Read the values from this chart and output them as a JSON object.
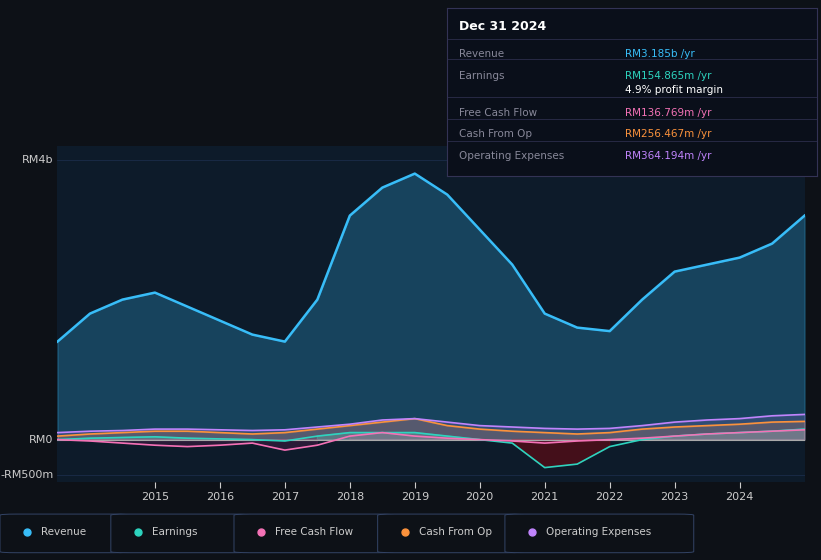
{
  "bg_color": "#0d1117",
  "plot_bg_color": "#0d1b2a",
  "grid_color": "#1e3050",
  "title_box_date": "Dec 31 2024",
  "ylabel_top": "RM4b",
  "ylabel_mid": "RM0",
  "ylabel_bot": "-RM500m",
  "x_years": [
    2013.5,
    2014,
    2014.5,
    2015,
    2015.5,
    2016,
    2016.5,
    2017,
    2017.5,
    2018,
    2018.5,
    2019,
    2019.5,
    2020,
    2020.5,
    2021,
    2021.5,
    2022,
    2022.5,
    2023,
    2023.5,
    2024,
    2024.5,
    2025
  ],
  "revenue": [
    1.4,
    1.8,
    2.0,
    2.1,
    1.9,
    1.7,
    1.5,
    1.4,
    2.0,
    3.2,
    3.6,
    3.8,
    3.5,
    3.0,
    2.5,
    1.8,
    1.6,
    1.55,
    2.0,
    2.4,
    2.5,
    2.6,
    2.8,
    3.2
  ],
  "earnings": [
    0.0,
    0.02,
    0.03,
    0.04,
    0.02,
    0.01,
    0.0,
    -0.02,
    0.05,
    0.1,
    0.1,
    0.1,
    0.05,
    0.0,
    -0.05,
    -0.4,
    -0.35,
    -0.1,
    0.0,
    0.05,
    0.08,
    0.1,
    0.12,
    0.15
  ],
  "free_cash_flow": [
    0.0,
    -0.02,
    -0.05,
    -0.08,
    -0.1,
    -0.08,
    -0.05,
    -0.15,
    -0.08,
    0.05,
    0.1,
    0.05,
    0.02,
    0.0,
    -0.02,
    -0.05,
    -0.02,
    0.0,
    0.02,
    0.05,
    0.08,
    0.1,
    0.12,
    0.14
  ],
  "cash_from_op": [
    0.05,
    0.08,
    0.1,
    0.12,
    0.12,
    0.1,
    0.08,
    0.1,
    0.15,
    0.2,
    0.25,
    0.3,
    0.2,
    0.15,
    0.12,
    0.1,
    0.08,
    0.1,
    0.15,
    0.18,
    0.2,
    0.22,
    0.25,
    0.26
  ],
  "op_expenses": [
    0.1,
    0.12,
    0.13,
    0.15,
    0.15,
    0.14,
    0.13,
    0.14,
    0.18,
    0.22,
    0.28,
    0.3,
    0.25,
    0.2,
    0.18,
    0.16,
    0.15,
    0.16,
    0.2,
    0.25,
    0.28,
    0.3,
    0.34,
    0.36
  ],
  "revenue_color": "#38bdf8",
  "earnings_color": "#2dd4bf",
  "fcf_color": "#f472b6",
  "cfo_color": "#fb923c",
  "opex_color": "#c084fc",
  "legend_labels": [
    "Revenue",
    "Earnings",
    "Free Cash Flow",
    "Cash From Op",
    "Operating Expenses"
  ],
  "legend_colors": [
    "#38bdf8",
    "#2dd4bf",
    "#f472b6",
    "#fb923c",
    "#c084fc"
  ],
  "box_rows": [
    {
      "label": "Revenue",
      "value": "RM3.185b",
      "unit": " /yr",
      "value_color": "#38bdf8"
    },
    {
      "label": "Earnings",
      "value": "RM154.865m",
      "unit": " /yr",
      "value_color": "#2dd4bf"
    },
    {
      "label": "",
      "value": "4.9%",
      "unit": " profit margin",
      "value_color": "#ffffff"
    },
    {
      "label": "Free Cash Flow",
      "value": "RM136.769m",
      "unit": " /yr",
      "value_color": "#f472b6"
    },
    {
      "label": "Cash From Op",
      "value": "RM256.467m",
      "unit": " /yr",
      "value_color": "#fb923c"
    },
    {
      "label": "Operating Expenses",
      "value": "RM364.194m",
      "unit": " /yr",
      "value_color": "#c084fc"
    }
  ],
  "xtick_years": [
    2015,
    2016,
    2017,
    2018,
    2019,
    2020,
    2021,
    2022,
    2023,
    2024
  ],
  "ylim": [
    -0.6,
    4.2
  ],
  "y_zero": 0.0,
  "y_top_line": 4.0,
  "y_bot_line": -0.5
}
